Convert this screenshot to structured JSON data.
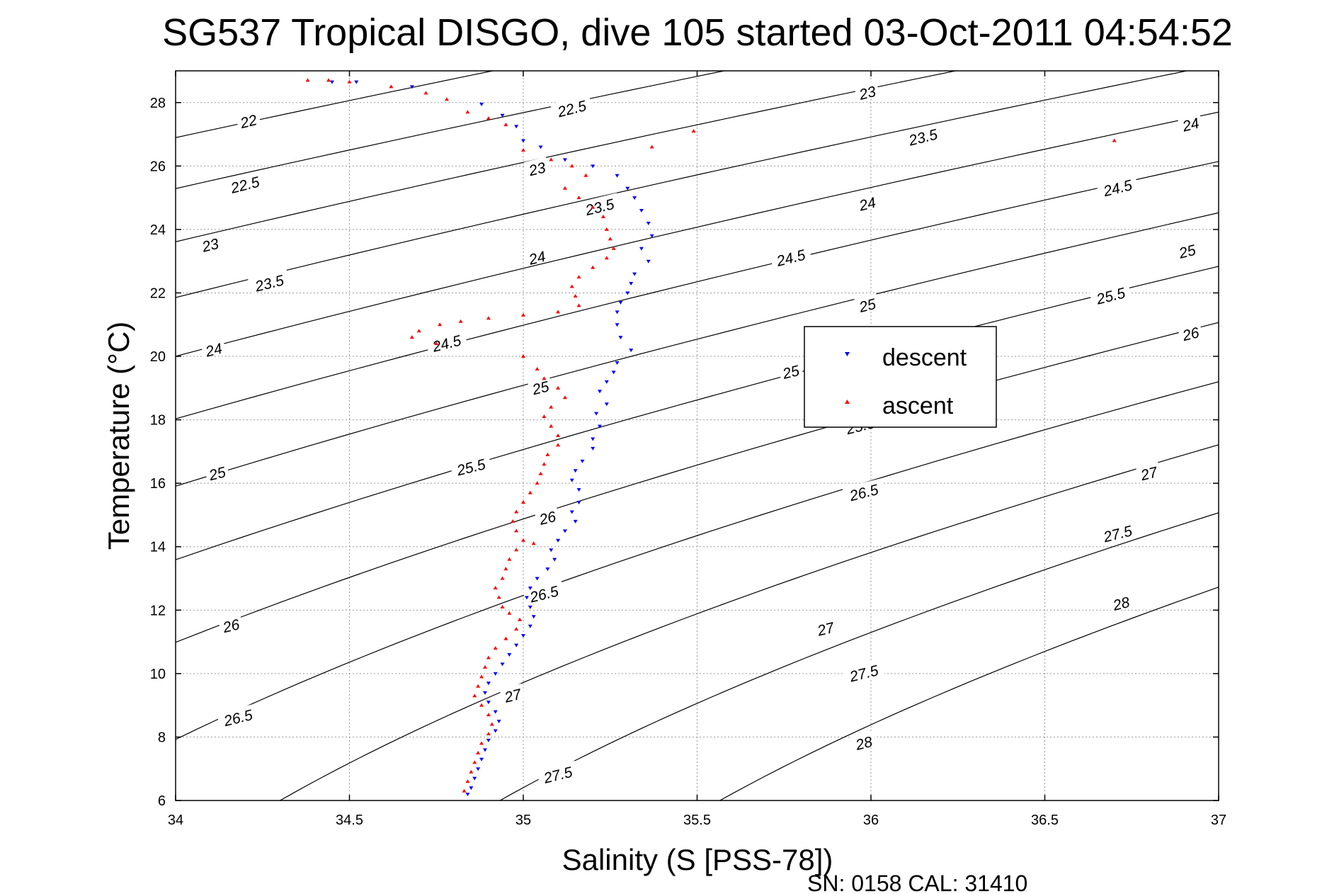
{
  "chart_data": {
    "type": "scatter",
    "title": "SG537 Tropical DISGO, dive 105 started 03-Oct-2011 04:54:52",
    "xlabel": "Salinity (S [PSS-78])",
    "ylabel": "Temperature (°C)",
    "xlim": [
      34,
      37
    ],
    "ylim": [
      6,
      29
    ],
    "xticks": [
      "34",
      "34.5",
      "35",
      "35.5",
      "36",
      "36.5",
      "37"
    ],
    "yticks": [
      "6",
      "8",
      "10",
      "12",
      "14",
      "16",
      "18",
      "20",
      "22",
      "24",
      "26",
      "28"
    ],
    "grid": "on",
    "legend_position": "right",
    "footer_text": "SN: 0158  CAL: 31410",
    "colors": {
      "descent": "#0000ff",
      "ascent": "#ff0000",
      "contour": "#000000",
      "grid": "#999999"
    },
    "density_contours": {
      "levels": [
        22,
        22.5,
        23,
        23.5,
        24,
        24.5,
        25,
        25.5,
        26,
        26.5,
        27,
        27.5,
        28
      ],
      "labels": [
        {
          "text": "22",
          "s": 34.21,
          "t": 27.4
        },
        {
          "text": "22.5",
          "s": 34.2,
          "t": 25.4
        },
        {
          "text": "23",
          "s": 34.1,
          "t": 23.5
        },
        {
          "text": "23.5",
          "s": 34.27,
          "t": 22.3
        },
        {
          "text": "24",
          "s": 34.11,
          "t": 20.2
        },
        {
          "text": "25",
          "s": 34.12,
          "t": 16.3
        },
        {
          "text": "26",
          "s": 34.16,
          "t": 11.5
        },
        {
          "text": "26.5",
          "s": 34.18,
          "t": 8.6
        },
        {
          "text": "22.5",
          "s": 35.14,
          "t": 27.8
        },
        {
          "text": "23",
          "s": 35.04,
          "t": 25.9
        },
        {
          "text": "23.5",
          "s": 35.22,
          "t": 24.7
        },
        {
          "text": "24",
          "s": 35.04,
          "t": 23.1
        },
        {
          "text": "24.5",
          "s": 34.78,
          "t": 20.4
        },
        {
          "text": "25",
          "s": 35.05,
          "t": 19.0
        },
        {
          "text": "25.5",
          "s": 34.85,
          "t": 16.5
        },
        {
          "text": "26",
          "s": 35.07,
          "t": 14.9
        },
        {
          "text": "26.5",
          "s": 35.06,
          "t": 12.5
        },
        {
          "text": "27",
          "s": 34.97,
          "t": 9.3
        },
        {
          "text": "27.5",
          "s": 35.1,
          "t": 6.8
        },
        {
          "text": "23",
          "s": 35.99,
          "t": 28.3
        },
        {
          "text": "23.5",
          "s": 36.15,
          "t": 26.9
        },
        {
          "text": "24",
          "s": 35.99,
          "t": 24.8
        },
        {
          "text": "24.5",
          "s": 35.77,
          "t": 23.1
        },
        {
          "text": "25",
          "s": 35.99,
          "t": 21.6
        },
        {
          "text": "25",
          "s": 35.77,
          "t": 19.5
        },
        {
          "text": "25.5",
          "s": 35.97,
          "t": 17.8
        },
        {
          "text": "26.5",
          "s": 35.98,
          "t": 15.7
        },
        {
          "text": "27",
          "s": 35.87,
          "t": 11.4
        },
        {
          "text": "27.5",
          "s": 35.98,
          "t": 10.0
        },
        {
          "text": "28",
          "s": 35.98,
          "t": 7.8
        },
        {
          "text": "24",
          "s": 36.92,
          "t": 27.3
        },
        {
          "text": "24.5",
          "s": 36.71,
          "t": 25.3
        },
        {
          "text": "25",
          "s": 36.91,
          "t": 23.3
        },
        {
          "text": "25.5",
          "s": 36.69,
          "t": 21.9
        },
        {
          "text": "26",
          "s": 36.92,
          "t": 20.7
        },
        {
          "text": "27",
          "s": 36.8,
          "t": 16.3
        },
        {
          "text": "27.5",
          "s": 36.71,
          "t": 14.4
        },
        {
          "text": "28",
          "s": 36.72,
          "t": 12.2
        }
      ]
    },
    "series": [
      {
        "name": "descent",
        "marker": "triangle-down",
        "points": [
          [
            34.45,
            28.65
          ],
          [
            34.52,
            28.65
          ],
          [
            34.68,
            28.5
          ],
          [
            34.88,
            27.95
          ],
          [
            34.94,
            27.6
          ],
          [
            34.98,
            27.25
          ],
          [
            35.0,
            26.8
          ],
          [
            35.05,
            26.6
          ],
          [
            35.12,
            26.2
          ],
          [
            35.2,
            26.0
          ],
          [
            35.27,
            25.7
          ],
          [
            35.3,
            25.3
          ],
          [
            35.32,
            25.0
          ],
          [
            35.34,
            24.6
          ],
          [
            35.36,
            24.2
          ],
          [
            35.37,
            23.8
          ],
          [
            35.34,
            23.4
          ],
          [
            35.36,
            23.0
          ],
          [
            35.32,
            22.6
          ],
          [
            35.31,
            22.3
          ],
          [
            35.3,
            22.0
          ],
          [
            35.28,
            21.7
          ],
          [
            35.27,
            21.4
          ],
          [
            35.27,
            21.0
          ],
          [
            35.28,
            20.6
          ],
          [
            35.31,
            20.2
          ],
          [
            35.27,
            19.8
          ],
          [
            35.26,
            19.5
          ],
          [
            35.24,
            19.2
          ],
          [
            35.22,
            18.9
          ],
          [
            35.24,
            18.5
          ],
          [
            35.21,
            18.2
          ],
          [
            35.22,
            17.8
          ],
          [
            35.2,
            17.4
          ],
          [
            35.2,
            17.1
          ],
          [
            35.17,
            16.7
          ],
          [
            35.15,
            16.4
          ],
          [
            35.14,
            16.1
          ],
          [
            35.16,
            15.8
          ],
          [
            35.16,
            15.4
          ],
          [
            35.14,
            15.1
          ],
          [
            35.15,
            14.8
          ],
          [
            35.12,
            14.5
          ],
          [
            35.1,
            14.2
          ],
          [
            35.08,
            13.9
          ],
          [
            35.09,
            13.6
          ],
          [
            35.07,
            13.3
          ],
          [
            35.04,
            13.0
          ],
          [
            35.02,
            12.7
          ],
          [
            35.01,
            12.4
          ],
          [
            35.02,
            12.1
          ],
          [
            35.03,
            11.8
          ],
          [
            35.02,
            11.5
          ],
          [
            35.0,
            11.2
          ],
          [
            34.98,
            10.9
          ],
          [
            34.96,
            10.6
          ],
          [
            34.94,
            10.3
          ],
          [
            34.92,
            10.0
          ],
          [
            34.9,
            9.7
          ],
          [
            34.89,
            9.4
          ],
          [
            34.9,
            9.1
          ],
          [
            34.92,
            8.8
          ],
          [
            34.93,
            8.5
          ],
          [
            34.92,
            8.2
          ],
          [
            34.9,
            7.9
          ],
          [
            34.89,
            7.6
          ],
          [
            34.88,
            7.3
          ],
          [
            34.87,
            7.0
          ],
          [
            34.86,
            6.7
          ],
          [
            34.85,
            6.4
          ],
          [
            34.84,
            6.2
          ]
        ]
      },
      {
        "name": "ascent",
        "marker": "triangle-up",
        "points": [
          [
            34.38,
            28.7
          ],
          [
            34.44,
            28.7
          ],
          [
            34.5,
            28.65
          ],
          [
            34.62,
            28.5
          ],
          [
            34.72,
            28.3
          ],
          [
            34.78,
            28.1
          ],
          [
            34.84,
            27.7
          ],
          [
            34.9,
            27.5
          ],
          [
            34.95,
            27.3
          ],
          [
            35.49,
            27.1
          ],
          [
            35.37,
            26.6
          ],
          [
            36.7,
            26.8
          ],
          [
            35.0,
            26.5
          ],
          [
            35.08,
            26.2
          ],
          [
            35.14,
            26.0
          ],
          [
            35.18,
            25.7
          ],
          [
            35.12,
            25.3
          ],
          [
            35.16,
            25.0
          ],
          [
            35.2,
            24.7
          ],
          [
            35.23,
            24.4
          ],
          [
            35.24,
            24.0
          ],
          [
            35.25,
            23.7
          ],
          [
            35.26,
            23.4
          ],
          [
            35.24,
            23.1
          ],
          [
            35.2,
            22.8
          ],
          [
            35.16,
            22.5
          ],
          [
            35.14,
            22.2
          ],
          [
            35.15,
            21.9
          ],
          [
            35.16,
            21.6
          ],
          [
            35.1,
            21.4
          ],
          [
            35.0,
            21.3
          ],
          [
            34.9,
            21.2
          ],
          [
            34.82,
            21.1
          ],
          [
            34.76,
            21.0
          ],
          [
            34.7,
            20.8
          ],
          [
            34.68,
            20.6
          ],
          [
            34.75,
            20.4
          ],
          [
            35.0,
            20.0
          ],
          [
            35.04,
            19.6
          ],
          [
            35.06,
            19.3
          ],
          [
            35.1,
            19.0
          ],
          [
            35.12,
            18.7
          ],
          [
            35.08,
            18.4
          ],
          [
            35.06,
            18.1
          ],
          [
            35.08,
            17.8
          ],
          [
            35.1,
            17.5
          ],
          [
            35.1,
            17.2
          ],
          [
            35.07,
            16.9
          ],
          [
            35.06,
            16.6
          ],
          [
            35.05,
            16.3
          ],
          [
            35.04,
            16.0
          ],
          [
            35.02,
            15.7
          ],
          [
            35.0,
            15.4
          ],
          [
            34.98,
            15.1
          ],
          [
            34.97,
            14.8
          ],
          [
            34.98,
            14.5
          ],
          [
            35.0,
            14.2
          ],
          [
            35.03,
            14.1
          ],
          [
            34.98,
            13.9
          ],
          [
            34.96,
            13.6
          ],
          [
            34.95,
            13.3
          ],
          [
            34.94,
            13.0
          ],
          [
            34.92,
            12.7
          ],
          [
            34.93,
            12.4
          ],
          [
            34.94,
            12.1
          ],
          [
            34.96,
            11.9
          ],
          [
            34.99,
            11.7
          ],
          [
            34.98,
            11.4
          ],
          [
            34.95,
            11.1
          ],
          [
            34.92,
            10.8
          ],
          [
            34.9,
            10.5
          ],
          [
            34.89,
            10.2
          ],
          [
            34.88,
            9.9
          ],
          [
            34.87,
            9.6
          ],
          [
            34.86,
            9.3
          ],
          [
            34.88,
            9.0
          ],
          [
            34.9,
            8.7
          ],
          [
            34.91,
            8.4
          ],
          [
            34.9,
            8.1
          ],
          [
            34.88,
            7.8
          ],
          [
            34.87,
            7.5
          ],
          [
            34.86,
            7.2
          ],
          [
            34.85,
            6.9
          ],
          [
            34.84,
            6.6
          ],
          [
            34.83,
            6.3
          ]
        ]
      }
    ]
  }
}
